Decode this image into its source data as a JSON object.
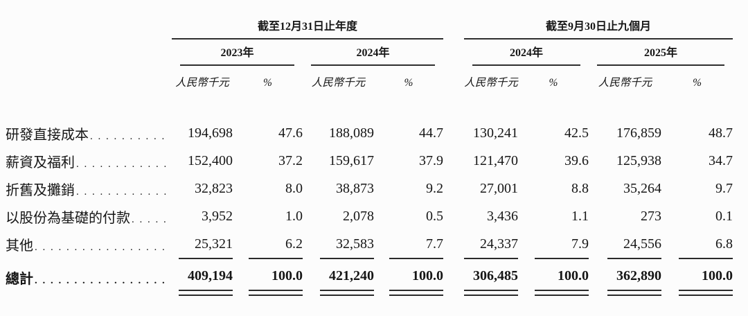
{
  "page": {
    "background": "#fcfcfc",
    "text_color": "#161616",
    "rule_color": "#2e2e2e"
  },
  "table": {
    "period_groups": [
      {
        "title": "截至12月31日止年度"
      },
      {
        "title": "截至9月30日止九個月"
      }
    ],
    "years": [
      "2023年",
      "2024年",
      "2024年",
      "2025年"
    ],
    "col_headers": {
      "rmb": "人民幣千元",
      "pct": "%"
    },
    "rows": [
      {
        "label": "研發直接成本",
        "values": [
          "194,698",
          "47.6",
          "188,089",
          "44.7",
          "130,241",
          "42.5",
          "176,859",
          "48.7"
        ]
      },
      {
        "label": "薪資及福利",
        "values": [
          "152,400",
          "37.2",
          "159,617",
          "37.9",
          "121,470",
          "39.6",
          "125,938",
          "34.7"
        ]
      },
      {
        "label": "折舊及攤銷",
        "values": [
          "32,823",
          "8.0",
          "38,873",
          "9.2",
          "27,001",
          "8.8",
          "35,264",
          "9.7"
        ]
      },
      {
        "label": "以股份為基礎的付款",
        "values": [
          "3,952",
          "1.0",
          "2,078",
          "0.5",
          "3,436",
          "1.1",
          "273",
          "0.1"
        ]
      },
      {
        "label": "其他",
        "values": [
          "25,321",
          "6.2",
          "32,583",
          "7.7",
          "24,337",
          "7.9",
          "24,556",
          "6.8"
        ]
      },
      {
        "label": "總計",
        "total": true,
        "values": [
          "409,194",
          "100.0",
          "421,240",
          "100.0",
          "306,485",
          "100.0",
          "362,890",
          "100.0"
        ]
      }
    ]
  }
}
